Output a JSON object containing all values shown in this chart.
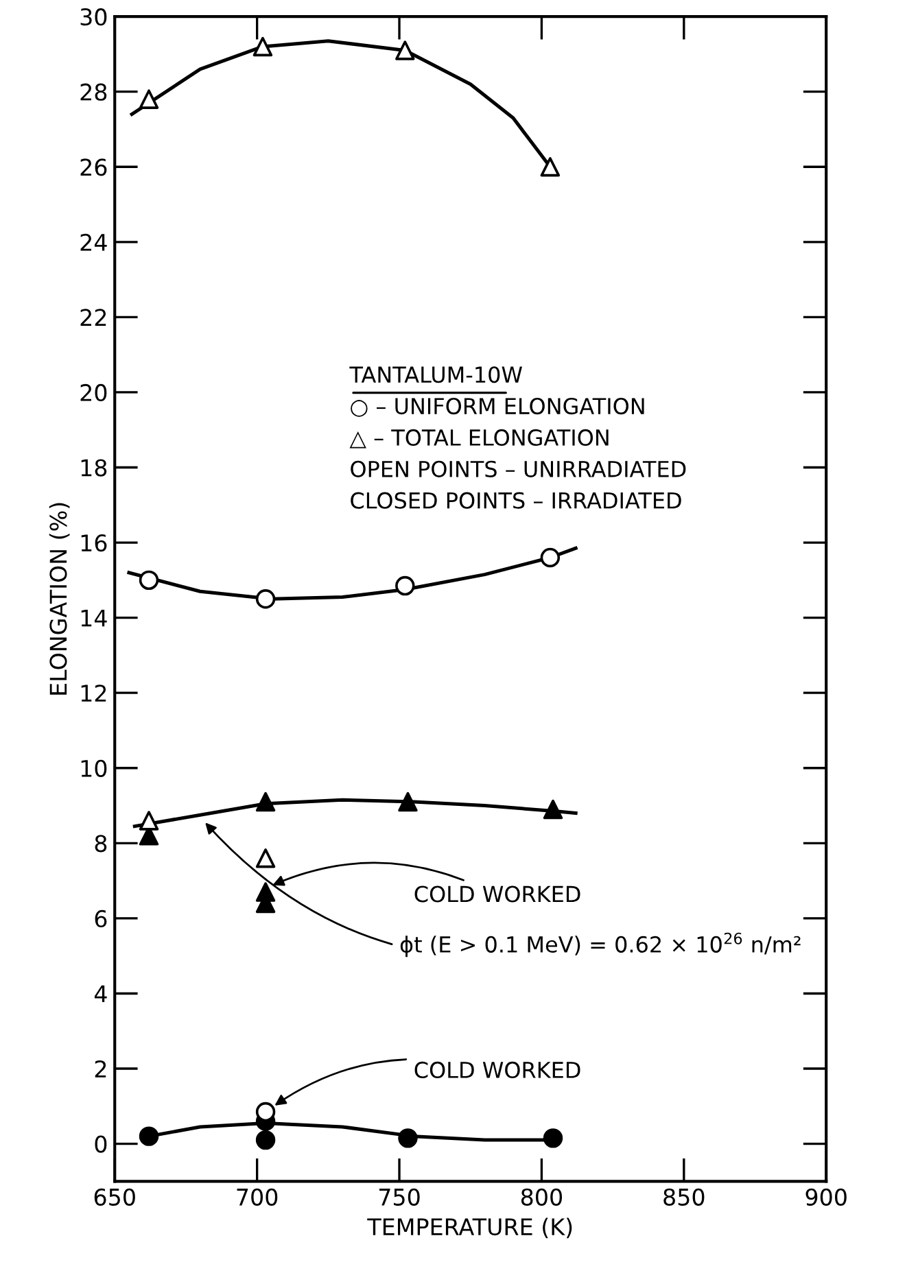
{
  "chart_data": {
    "type": "scatter",
    "xlabel": "TEMPERATURE (K)",
    "ylabel": "ELONGATION (%)",
    "xlim": [
      650,
      900
    ],
    "xticks": [
      650,
      700,
      750,
      800,
      850,
      900
    ],
    "ylim": [
      -1,
      30
    ],
    "yticks": [
      0,
      2,
      4,
      6,
      8,
      10,
      12,
      14,
      16,
      18,
      20,
      22,
      24,
      26,
      28,
      30
    ],
    "grid": false,
    "series": [
      {
        "type": "line",
        "marker": "none",
        "color": "#000000",
        "x": [
          656,
          680,
          702,
          725,
          752,
          775,
          790,
          803
        ],
        "values": [
          27.4,
          28.6,
          29.2,
          29.35,
          29.1,
          28.2,
          27.3,
          26.0
        ]
      },
      {
        "type": "line",
        "marker": "none",
        "color": "#000000",
        "x": [
          655,
          680,
          705,
          730,
          752,
          780,
          803,
          812
        ],
        "values": [
          15.2,
          14.7,
          14.5,
          14.55,
          14.75,
          15.15,
          15.6,
          15.85
        ]
      },
      {
        "type": "line",
        "marker": "none",
        "color": "#000000",
        "x": [
          657,
          680,
          703,
          730,
          755,
          780,
          805,
          812
        ],
        "values": [
          8.45,
          8.75,
          9.05,
          9.15,
          9.1,
          9.0,
          8.85,
          8.8
        ]
      },
      {
        "type": "line",
        "marker": "none",
        "color": "#000000",
        "x": [
          662,
          680,
          703,
          730,
          755,
          780,
          803
        ],
        "values": [
          0.2,
          0.45,
          0.55,
          0.45,
          0.2,
          0.1,
          0.1
        ]
      },
      {
        "marker": "triangle",
        "color": "#ffffff",
        "x": [
          662,
          702,
          752,
          803,
          662,
          703
        ],
        "values": [
          27.8,
          29.2,
          29.1,
          26.0,
          8.6,
          7.6
        ]
      },
      {
        "marker": "circle",
        "color": "#ffffff",
        "x": [
          662,
          703,
          752,
          803,
          703
        ],
        "values": [
          15.0,
          14.5,
          14.85,
          15.6,
          0.85
        ]
      },
      {
        "marker": "triangle",
        "color": "#000000",
        "x": [
          662,
          703,
          753,
          804,
          703,
          703
        ],
        "values": [
          8.2,
          9.1,
          9.1,
          8.9,
          6.7,
          6.4
        ]
      },
      {
        "marker": "circle",
        "color": "#000000",
        "x": [
          662,
          703,
          753,
          804,
          703
        ],
        "values": [
          0.2,
          0.6,
          0.15,
          0.15,
          0.1
        ]
      }
    ],
    "annotations": [
      "TANTALUM-10W",
      "○ – UNIFORM ELONGATION",
      "△ – TOTAL ELONGATION",
      "OPEN POINTS – UNIRRADIATED",
      "CLOSED POINTS – IRRADIATED",
      {
        "text": "COLD WORKED",
        "x": 703,
        "y": 6.8
      },
      {
        "text": "ϕt (E > 0.1 MeV) = 0.62 × 10$^{26}$ n/m²",
        "x": 680,
        "y": 8.7
      },
      {
        "text": "COLD WORKED",
        "x": 704,
        "y": 0.9
      }
    ]
  }
}
